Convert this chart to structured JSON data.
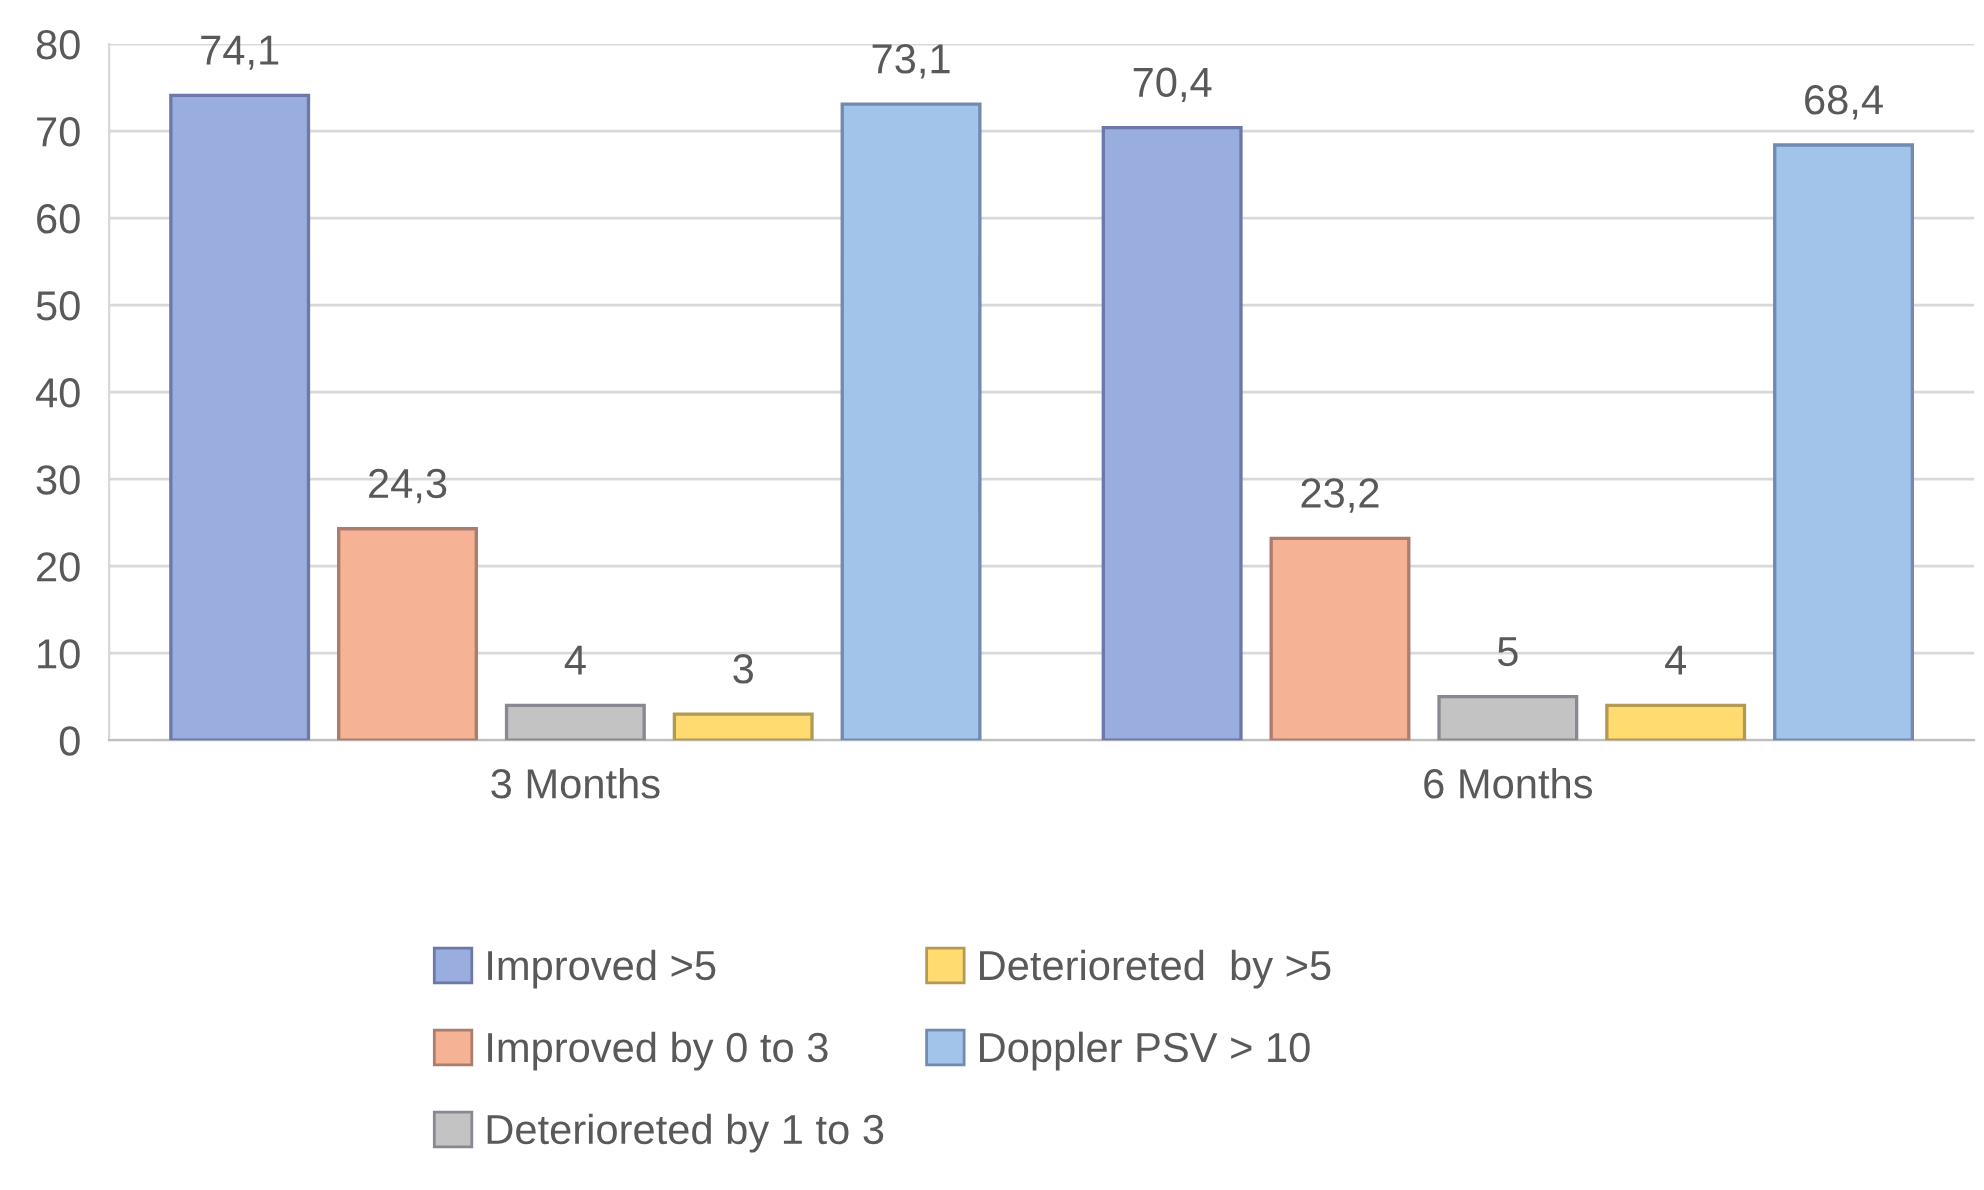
{
  "chart_data": {
    "type": "bar",
    "categories": [
      "3 Months",
      "6 Months"
    ],
    "series": [
      {
        "name": "Improved >5",
        "color": "#9aaddf",
        "values": [
          74.1,
          70.4
        ],
        "value_labels": [
          "74,1",
          "70,4"
        ]
      },
      {
        "name": "Improved by 0 to 3",
        "color": "#f5b294",
        "values": [
          24.3,
          23.2
        ],
        "value_labels": [
          "24,3",
          "23,2"
        ]
      },
      {
        "name": "Deterioreted by 1 to 3",
        "color": "#c3c3c3",
        "values": [
          4,
          5
        ],
        "value_labels": [
          "4",
          "5"
        ]
      },
      {
        "name": "Deterioreted  by >5",
        "color": "#ffdb70",
        "values": [
          3,
          4
        ],
        "value_labels": [
          "3",
          "4"
        ]
      },
      {
        "name": "Doppler PSV > 10",
        "color": "#a3c4ea",
        "values": [
          73.1,
          68.4
        ],
        "value_labels": [
          "73,1",
          "68,4"
        ]
      }
    ],
    "ylim": [
      0,
      80
    ],
    "yticks": [
      0,
      10,
      20,
      30,
      40,
      50,
      60,
      70,
      80
    ],
    "grid": "y",
    "legend": "bottom"
  }
}
